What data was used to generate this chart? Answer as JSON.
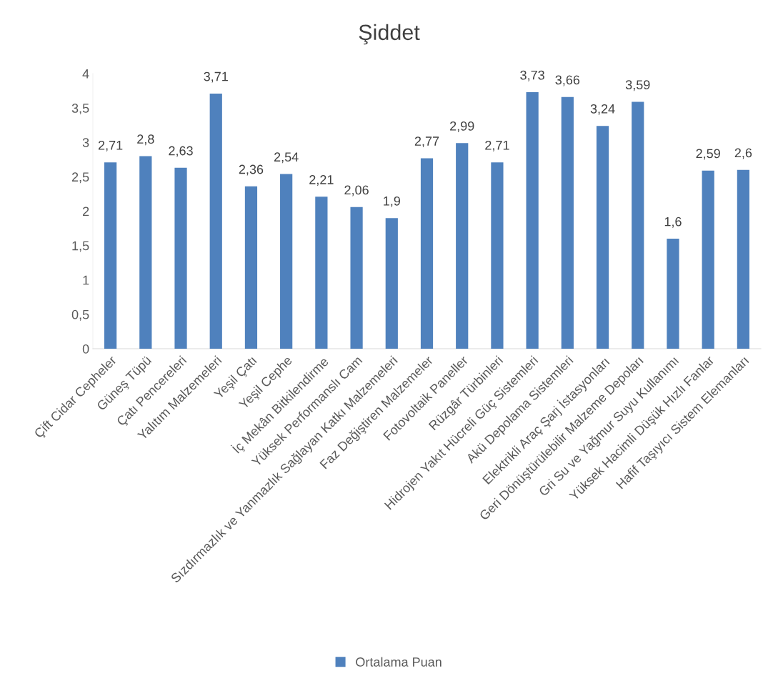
{
  "chart_data": {
    "type": "bar",
    "title": "Şiddet",
    "categories": [
      "Çift Cidar Cepheler",
      "Güneş Tüpü",
      "Çatı Pencereleri",
      "Yalıtım Malzemeleri",
      "Yeşil Çatı",
      "Yeşil Cephe",
      "İç Mekân Bitkilendirme",
      "Yüksek Performanslı Cam",
      "Sızdırmazlık ve Yanmazlık Sağlayan Katkı Malzemeleri",
      "Faz Değiştiren Malzemeler",
      "Fotovoltaik Paneller",
      "Rüzgâr Türbinleri",
      "Hidrojen Yakıt Hücreli Güç Sistemleri",
      "Akü Depolama Sistemleri",
      "Elektrikli Araç Şarj İstasyonları",
      "Geri Dönüştürülebilir Malzeme Depoları",
      "Gri Su ve Yağmur Suyu Kullanımı",
      "Yüksek Hacimli Düşük Hızlı Fanlar",
      "Hafif Taşıyıcı Sistem Elemanları"
    ],
    "series": [
      {
        "name": "Ortalama Puan",
        "color": "#4f81bd",
        "values": [
          2.71,
          2.8,
          2.63,
          3.71,
          2.36,
          2.54,
          2.21,
          2.06,
          1.9,
          2.77,
          2.99,
          2.71,
          3.73,
          3.66,
          3.24,
          3.59,
          1.6,
          2.59,
          2.6
        ],
        "value_labels": [
          "2,71",
          "2,8",
          "2,63",
          "3,71",
          "2,36",
          "2,54",
          "2,21",
          "2,06",
          "1,9",
          "2,77",
          "2,99",
          "2,71",
          "3,73",
          "3,66",
          "3,24",
          "3,59",
          "1,6",
          "2,59",
          "2,6"
        ]
      }
    ],
    "ylim": [
      0,
      4
    ],
    "yticks": [
      0,
      {
        "value": 0.5,
        "label": "0,5"
      },
      1,
      {
        "value": 1.5,
        "label": "1,5"
      },
      2,
      {
        "value": 2.5,
        "label": "2,5"
      },
      3,
      {
        "value": 3.5,
        "label": "3,5"
      },
      4
    ],
    "grid": false,
    "legend": "bottom"
  }
}
